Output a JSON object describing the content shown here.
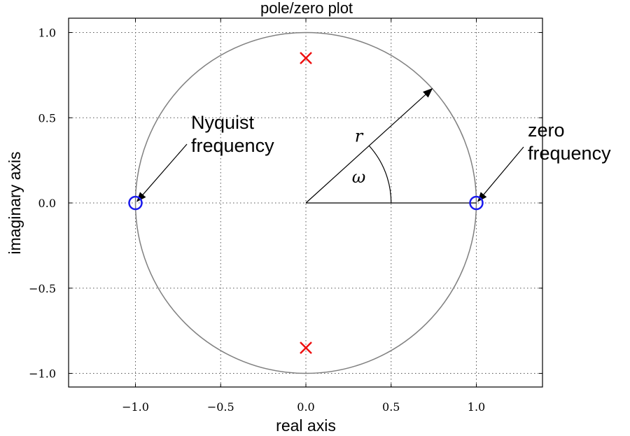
{
  "chart_data": {
    "type": "scatter",
    "title": "pole/zero plot",
    "xlabel": "real axis",
    "ylabel": "imaginary axis",
    "xlim": [
      -1.4,
      1.4
    ],
    "ylim": [
      -1.09,
      1.09
    ],
    "xticks": [
      -1.0,
      -0.5,
      0.0,
      0.5,
      1.0
    ],
    "yticks": [
      -1.0,
      -0.5,
      0.0,
      0.5,
      1.0
    ],
    "xtick_labels": [
      "−1.0",
      "−0.5",
      "0.0",
      "0.5",
      "1.0"
    ],
    "ytick_labels": [
      "−1.0",
      "−0.5",
      "0.0",
      "0.5",
      "1.0"
    ],
    "grid": true,
    "unit_circle": {
      "radius": 1.0,
      "color": "#808080"
    },
    "series": [
      {
        "marker": "x",
        "color": "#ee1111",
        "points": [
          [
            0.0,
            0.85
          ],
          [
            0.0,
            -0.85
          ]
        ]
      },
      {
        "marker": "o",
        "color": "#1a1aee",
        "points": [
          [
            -1.0,
            0.0
          ],
          [
            1.0,
            0.0
          ]
        ]
      }
    ],
    "annotations": {
      "nyquist": {
        "lines": [
          "Nyquist",
          "frequency"
        ],
        "text_at": [
          -0.67,
          0.37
        ],
        "arrow_to": [
          -0.99,
          0.01
        ]
      },
      "zero_freq": {
        "lines": [
          "zero",
          "frequency"
        ],
        "text_at": [
          1.3,
          0.25
        ],
        "arrow_to": [
          1.01,
          0.01
        ]
      },
      "radius": {
        "label": "r",
        "label_at": [
          0.31,
          0.36
        ],
        "arrow_to": [
          0.74,
          0.67
        ]
      },
      "angle": {
        "label": "ω",
        "label_at": [
          0.31,
          0.12
        ],
        "arc_radius": 0.5
      }
    }
  }
}
